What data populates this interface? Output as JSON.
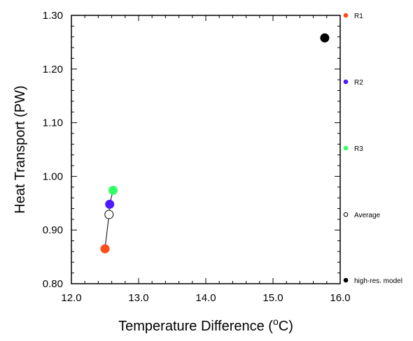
{
  "chart_data": {
    "type": "scatter",
    "xlabel": "Temperature Difference (",
    "xlabel_degree": "o",
    "xlabel_unit": "C)",
    "ylabel": "Heat Transport (PW)",
    "xlim": [
      12.0,
      16.0
    ],
    "ylim": [
      0.8,
      1.3
    ],
    "xticks": [
      "12.0",
      "13.0",
      "14.0",
      "15.0",
      "16.0"
    ],
    "yticks": [
      "0.80",
      "0.90",
      "1.00",
      "1.10",
      "1.20",
      "1.30"
    ],
    "grid": false,
    "legend_position": "right",
    "connector_color": "#000000",
    "series": [
      {
        "name": "R1",
        "color": "#ff4d1a",
        "filled": true,
        "x": 12.5,
        "y": 0.865
      },
      {
        "name": "R2",
        "color": "#4d1aff",
        "filled": true,
        "x": 12.57,
        "y": 0.948
      },
      {
        "name": "R3",
        "color": "#33ff66",
        "filled": true,
        "x": 12.62,
        "y": 0.974
      },
      {
        "name": "Average",
        "color": "#000000",
        "filled": false,
        "x": 12.56,
        "y": 0.929
      },
      {
        "name": "high-res. model",
        "color": "#000000",
        "filled": true,
        "x": 15.77,
        "y": 1.258
      }
    ]
  }
}
